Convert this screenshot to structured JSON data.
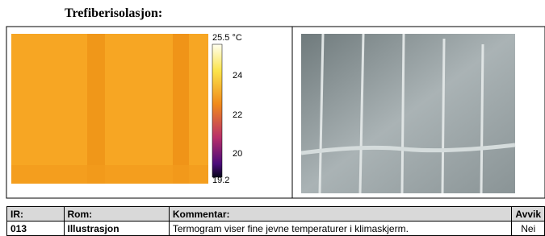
{
  "header": {
    "title": "Trefiberisolasjon:"
  },
  "thermal_image": {
    "scale_labels": [
      "25.5 °C",
      "24",
      "22",
      "20",
      "19.2"
    ]
  },
  "table": {
    "columns": [
      "IR:",
      "Rom:",
      "Kommentar:",
      "Avvik"
    ],
    "rows": [
      [
        "013",
        "Illustrasjon",
        "Termogram viser fine jevne temperaturer i klimaskjerm.",
        "Nei"
      ]
    ]
  }
}
